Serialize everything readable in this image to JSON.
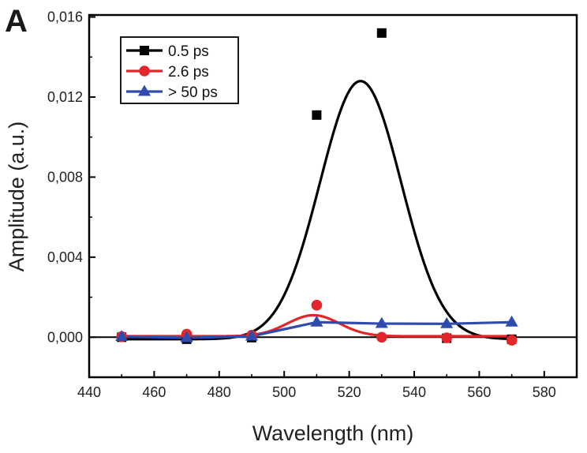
{
  "panel_label": "A",
  "chart_data": {
    "type": "scatter",
    "title": "",
    "xlabel": "Wavelength (nm)",
    "ylabel": "Amplitude (a.u.)",
    "xlim": [
      440,
      590
    ],
    "ylim": [
      -0.002,
      0.0161
    ],
    "xticks": [
      440,
      460,
      480,
      500,
      520,
      540,
      560,
      580
    ],
    "yticks": [
      0.0,
      0.004,
      0.008,
      0.012,
      0.016
    ],
    "ytick_labels": [
      "0,000",
      "0,004",
      "0,008",
      "0,012",
      "0,016"
    ],
    "grid": false,
    "legend_position": "top-left",
    "zero_line": true,
    "series": [
      {
        "name": "0.5 ps",
        "color": "#000000",
        "marker": "square",
        "x": [
          450,
          470,
          490,
          510,
          530,
          550,
          570
        ],
        "y": [
          0.0,
          -0.0001,
          -2e-05,
          0.0111,
          0.0152,
          -5e-05,
          -0.0001
        ],
        "fit": {
          "type": "gaussian",
          "center": 523.5,
          "sigma": 12.5,
          "amplitude": 0.0129,
          "offset": -0.0001
        }
      },
      {
        "name": "2.6 ps",
        "color": "#e3262b",
        "marker": "circle",
        "x": [
          450,
          470,
          490,
          510,
          530,
          550,
          570
        ],
        "y": [
          3e-05,
          0.00015,
          0.0001,
          0.0016,
          0.0,
          -3e-05,
          -0.00015
        ],
        "fit": {
          "type": "gaussian",
          "center": 509,
          "sigma": 8,
          "amplitude": 0.00105,
          "offset": 5e-05
        }
      },
      {
        "name": "> 50 ps",
        "color": "#2e4bad",
        "marker": "triangle",
        "x": [
          450,
          470,
          490,
          510,
          530,
          550,
          570
        ],
        "y": [
          3e-05,
          -3e-05,
          5e-05,
          0.00075,
          0.00068,
          0.00067,
          0.00075
        ],
        "fit": {
          "type": "polyline"
        }
      }
    ]
  }
}
